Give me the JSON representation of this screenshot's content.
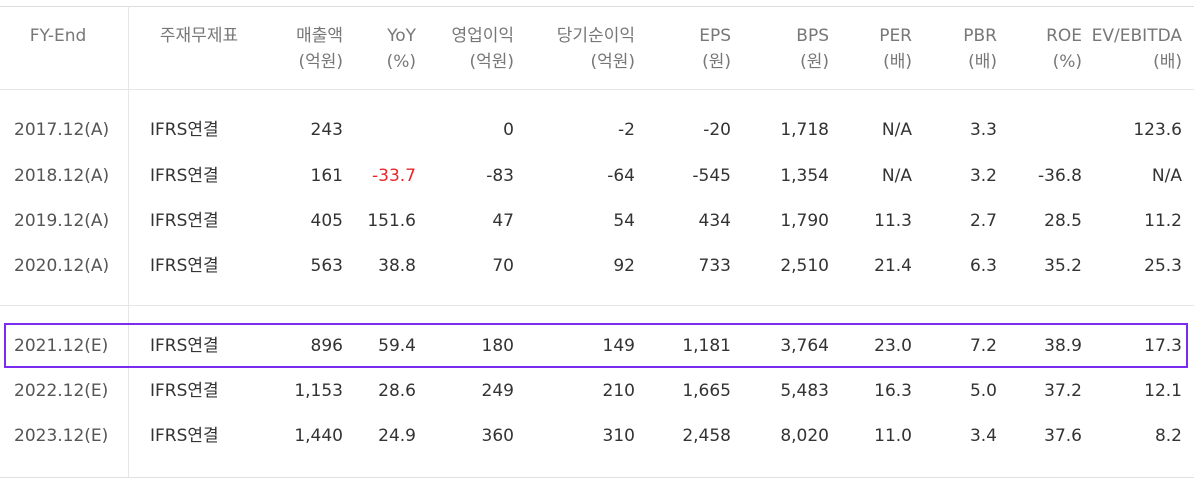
{
  "colors": {
    "highlight_border": "#7b2cf0",
    "negative_yoy": "#e8262a"
  },
  "headers": [
    {
      "key": "fy_end",
      "l1": "FY-End",
      "l2": ""
    },
    {
      "key": "type",
      "l1": "주재무제표",
      "l2": ""
    },
    {
      "key": "sales",
      "l1": "매출액",
      "l2": "(억원)"
    },
    {
      "key": "yoy",
      "l1": "YoY",
      "l2": "(%)"
    },
    {
      "key": "op",
      "l1": "영업이익",
      "l2": "(억원)"
    },
    {
      "key": "net",
      "l1": "당기순이익",
      "l2": "(억원)"
    },
    {
      "key": "eps",
      "l1": "EPS",
      "l2": "(원)"
    },
    {
      "key": "bps",
      "l1": "BPS",
      "l2": "(원)"
    },
    {
      "key": "per",
      "l1": "PER",
      "l2": "(배)"
    },
    {
      "key": "pbr",
      "l1": "PBR",
      "l2": "(배)"
    },
    {
      "key": "roe",
      "l1": "ROE",
      "l2": "(%)"
    },
    {
      "key": "ev",
      "l1": "EV/EBITDA",
      "l2": "(배)"
    }
  ],
  "rows": [
    {
      "fy_end": "2017.12(A)",
      "type": "IFRS연결",
      "sales": "243",
      "yoy": "",
      "op": "0",
      "net": "-2",
      "eps": "-20",
      "bps": "1,718",
      "per": "N/A",
      "pbr": "3.3",
      "roe": "",
      "ev": "123.6"
    },
    {
      "fy_end": "2018.12(A)",
      "type": "IFRS연결",
      "sales": "161",
      "yoy": "-33.7",
      "op": "-83",
      "net": "-64",
      "eps": "-545",
      "bps": "1,354",
      "per": "N/A",
      "pbr": "3.2",
      "roe": "-36.8",
      "ev": "N/A"
    },
    {
      "fy_end": "2019.12(A)",
      "type": "IFRS연결",
      "sales": "405",
      "yoy": "151.6",
      "op": "47",
      "net": "54",
      "eps": "434",
      "bps": "1,790",
      "per": "11.3",
      "pbr": "2.7",
      "roe": "28.5",
      "ev": "11.2"
    },
    {
      "fy_end": "2020.12(A)",
      "type": "IFRS연결",
      "sales": "563",
      "yoy": "38.8",
      "op": "70",
      "net": "92",
      "eps": "733",
      "bps": "2,510",
      "per": "21.4",
      "pbr": "6.3",
      "roe": "35.2",
      "ev": "25.3"
    },
    {
      "fy_end": "2021.12(E)",
      "type": "IFRS연결",
      "sales": "896",
      "yoy": "59.4",
      "op": "180",
      "net": "149",
      "eps": "1,181",
      "bps": "3,764",
      "per": "23.0",
      "pbr": "7.2",
      "roe": "38.9",
      "ev": "17.3"
    },
    {
      "fy_end": "2022.12(E)",
      "type": "IFRS연결",
      "sales": "1,153",
      "yoy": "28.6",
      "op": "249",
      "net": "210",
      "eps": "1,665",
      "bps": "5,483",
      "per": "16.3",
      "pbr": "5.0",
      "roe": "37.2",
      "ev": "12.1"
    },
    {
      "fy_end": "2023.12(E)",
      "type": "IFRS연결",
      "sales": "1,440",
      "yoy": "24.9",
      "op": "360",
      "net": "310",
      "eps": "2,458",
      "bps": "8,020",
      "per": "11.0",
      "pbr": "3.4",
      "roe": "37.6",
      "ev": "8.2"
    }
  ]
}
